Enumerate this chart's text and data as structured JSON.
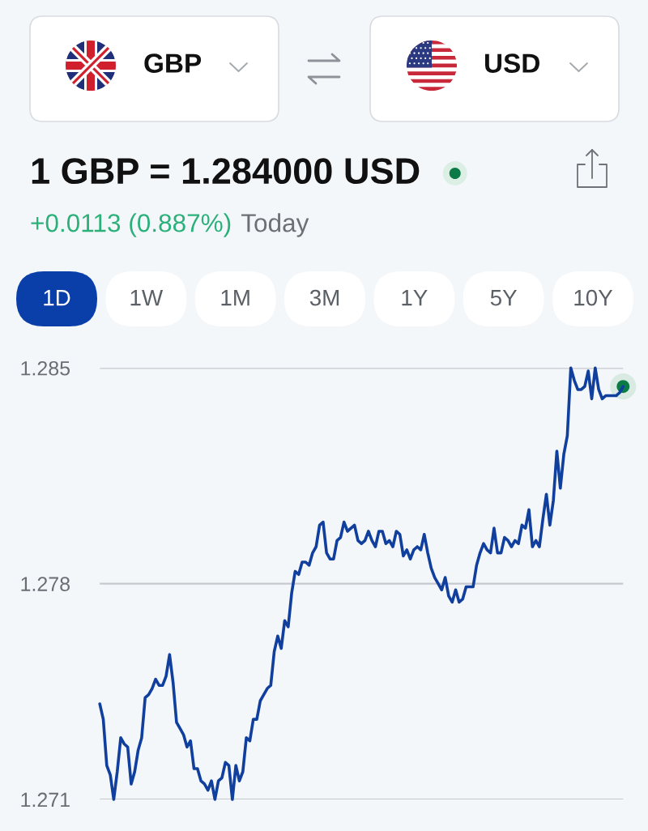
{
  "chart_data": {
    "type": "line",
    "title": "1 GBP = 1.284000 USD",
    "subtitle": "+0.0113 (0.887%)",
    "annotations": [
      "GBP",
      "USD",
      "Today",
      "1D",
      "1W",
      "1M",
      "3M",
      "1Y",
      "5Y",
      "10Y"
    ],
    "categories": [
      null,
      null,
      null,
      null,
      null,
      null,
      null,
      null,
      null,
      null,
      null,
      null,
      null,
      null,
      null,
      null,
      null,
      null,
      null,
      null,
      null,
      null,
      null,
      null,
      null,
      null,
      null,
      null,
      null,
      null,
      null,
      null,
      null,
      null,
      null,
      null,
      null,
      null,
      null,
      null,
      null,
      null,
      null,
      null,
      null,
      null,
      null,
      null,
      null,
      null,
      null,
      null,
      null,
      null,
      null,
      null,
      null,
      null,
      null,
      null,
      null,
      null,
      null,
      null,
      null,
      null,
      null,
      null,
      null,
      null,
      null,
      null,
      null,
      null,
      null,
      null,
      null,
      null,
      null,
      null,
      null,
      null,
      null,
      null,
      null,
      null,
      null,
      null,
      null,
      null,
      null,
      null,
      null,
      null,
      null,
      null,
      null,
      null,
      null,
      null,
      null,
      null,
      null,
      null,
      null,
      null,
      null,
      null,
      null,
      null,
      null,
      null,
      null,
      null,
      null,
      null,
      null,
      null,
      null,
      null,
      null,
      null,
      null,
      null,
      null,
      null,
      null,
      null,
      null,
      null,
      null,
      null,
      null,
      null,
      null,
      null,
      null,
      null,
      null,
      null,
      null,
      null,
      null,
      null,
      null,
      null,
      null,
      null,
      null,
      null,
      null
    ],
    "series": [
      {
        "color": "#103f9e",
        "values": [
          1.2741,
          1.2736,
          1.2721,
          1.2718,
          1.271,
          1.2719,
          1.273,
          1.2728,
          1.2727,
          1.2715,
          1.2719,
          1.2726,
          1.273,
          1.2743,
          1.2744,
          1.2746,
          1.2749,
          1.2747,
          1.2747,
          1.275,
          1.2757,
          1.2748,
          1.2735,
          1.2733,
          1.2731,
          1.2727,
          1.2729,
          1.272,
          1.272,
          1.2716,
          1.2715,
          1.2713,
          1.2716,
          1.271,
          1.2716,
          1.2717,
          1.2722,
          1.2721,
          1.271,
          1.2721,
          1.2716,
          1.2719,
          1.273,
          1.2729,
          1.2736,
          1.2736,
          1.2742,
          1.2744,
          1.2746,
          1.2747,
          1.2758,
          1.2763,
          1.2759,
          1.2768,
          1.2766,
          1.2777,
          1.2784,
          1.2783,
          1.2787,
          1.2787,
          1.2786,
          1.279,
          1.2792,
          1.2799,
          1.28,
          1.279,
          1.2788,
          1.2788,
          1.2794,
          1.2795,
          1.28,
          1.2797,
          1.2798,
          1.2799,
          1.2794,
          1.2793,
          1.2794,
          1.2797,
          1.2794,
          1.2792,
          1.2797,
          1.2797,
          1.2793,
          1.2794,
          1.2792,
          1.2797,
          1.2796,
          1.2789,
          1.2791,
          1.2788,
          1.2791,
          1.2792,
          1.2791,
          1.2796,
          1.279,
          1.2785,
          1.2782,
          1.278,
          1.2778,
          1.2782,
          1.2776,
          1.2774,
          1.2778,
          1.2774,
          1.2775,
          1.2779,
          1.2779,
          1.2779,
          1.2786,
          1.279,
          1.2793,
          1.2791,
          1.279,
          1.2798,
          1.279,
          1.279,
          1.2795,
          1.2794,
          1.2792,
          1.2794,
          1.2793,
          1.2799,
          1.2798,
          1.2804,
          1.2792,
          1.2794,
          1.2792,
          1.2801,
          1.2809,
          1.2799,
          1.2807,
          1.2823,
          1.2811,
          1.2822,
          1.2828,
          1.285,
          1.2846,
          1.2843,
          1.2843,
          1.2844,
          1.2849,
          1.284,
          1.285,
          1.2843,
          1.284,
          1.2841,
          1.2841,
          1.2841,
          1.2841,
          1.2842,
          1.2844
        ]
      },
      {
        "type": "scatter",
        "marker": "circle",
        "color": "#0b7a47",
        "values": [
          null,
          null,
          null,
          null,
          null,
          null,
          null,
          null,
          null,
          null,
          null,
          null,
          null,
          null,
          null,
          null,
          null,
          null,
          null,
          null,
          null,
          null,
          null,
          null,
          null,
          null,
          null,
          null,
          null,
          null,
          null,
          null,
          null,
          null,
          null,
          null,
          null,
          null,
          null,
          null,
          null,
          null,
          null,
          null,
          null,
          null,
          null,
          null,
          null,
          null,
          null,
          null,
          null,
          null,
          null,
          null,
          null,
          null,
          null,
          null,
          null,
          null,
          null,
          null,
          null,
          null,
          null,
          null,
          null,
          null,
          null,
          null,
          null,
          null,
          null,
          null,
          null,
          null,
          null,
          null,
          null,
          null,
          null,
          null,
          null,
          null,
          null,
          null,
          null,
          null,
          null,
          null,
          null,
          null,
          null,
          null,
          null,
          null,
          null,
          null,
          null,
          null,
          null,
          null,
          null,
          null,
          null,
          null,
          null,
          null,
          null,
          null,
          null,
          null,
          null,
          null,
          null,
          null,
          null,
          null,
          null,
          null,
          null,
          null,
          null,
          null,
          null,
          null,
          null,
          null,
          null,
          null,
          null,
          null,
          null,
          null,
          null,
          null,
          null,
          null,
          null,
          null,
          null,
          null,
          null,
          null,
          null,
          null,
          null,
          null,
          1.2844
        ]
      }
    ],
    "ylim": [
      1.271,
      1.285
    ],
    "yticks": [
      1.271,
      1.278,
      1.285
    ],
    "grid": "y",
    "tick_labels": "y"
  }
}
